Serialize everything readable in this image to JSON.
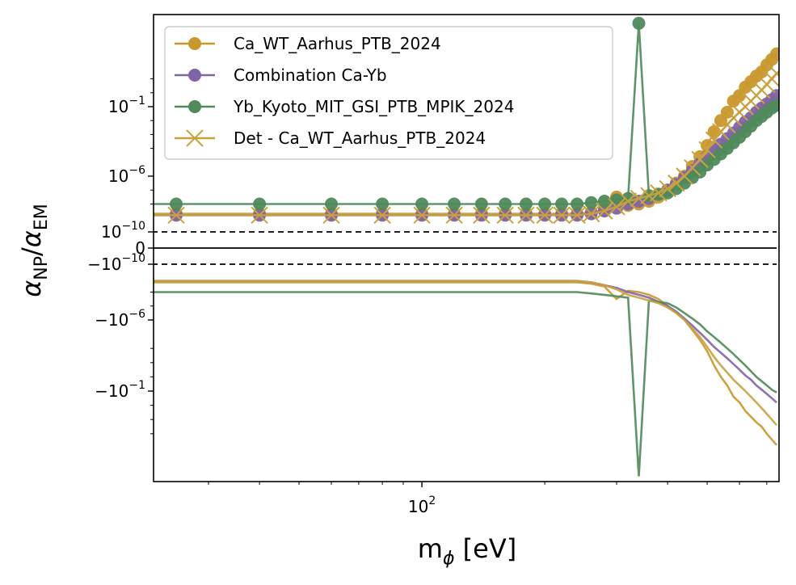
{
  "chart_data": {
    "type": "line",
    "xlabel_main": "m",
    "xlabel_sub": "ϕ",
    "xlabel_unit": " [eV]",
    "ylabel_num": "α",
    "ylabel_num_sub": "NP",
    "ylabel_den": "α",
    "ylabel_den_sub": "EM",
    "x_scale": "log",
    "y_scale": "symlog",
    "xlim": [
      22,
      750
    ],
    "x_ticks": [
      {
        "base": "10",
        "exp": "2",
        "value": 100
      }
    ],
    "y_ticks": [
      {
        "base": "10",
        "exp": "−1",
        "value": 0.1
      },
      {
        "base": "10",
        "exp": "−6",
        "value": 1e-06
      },
      {
        "base": "10",
        "exp": "−10",
        "value": 1e-10
      },
      {
        "base": "0",
        "exp": "",
        "value": 0
      },
      {
        "base": "−10",
        "exp": "−10",
        "value": -1e-10
      },
      {
        "base": "−10",
        "exp": "−6",
        "value": -1e-06
      },
      {
        "base": "−10",
        "exp": "−1",
        "value": -0.1
      }
    ],
    "dashed_lines": [
      1e-10,
      -1e-10
    ],
    "solid_lines": [
      0
    ],
    "legend_position": "upper-left",
    "x": [
      25,
      40,
      60,
      80,
      100,
      120,
      140,
      160,
      180,
      200,
      220,
      240,
      260,
      280,
      300,
      320,
      340,
      360,
      380,
      400,
      420,
      440,
      460,
      480,
      500,
      520,
      540,
      560,
      580,
      600,
      620,
      640,
      660,
      680,
      700,
      720,
      740
    ],
    "series": [
      {
        "name": "Ca_WT_Aarhus_PTB_2024",
        "color": "#c9982c",
        "marker": "circle",
        "pos_exp": [
          -8.7,
          -8.7,
          -8.7,
          -8.7,
          -8.7,
          -8.7,
          -8.7,
          -8.7,
          -8.7,
          -8.7,
          -8.7,
          -8.7,
          -8.6,
          -8.4,
          -7.5,
          -8.1,
          -8.0,
          -7.8,
          -7.5,
          -7.0,
          -6.5,
          -6.0,
          -5.3,
          -4.6,
          -3.8,
          -2.8,
          -2.0,
          -1.4,
          -0.6,
          -0.2,
          0.4,
          0.8,
          1.2,
          1.5,
          2.0,
          2.4,
          2.8
        ],
        "neg_exp": [
          -8.7,
          -8.7,
          -8.7,
          -8.7,
          -8.7,
          -8.7,
          -8.7,
          -8.7,
          -8.7,
          -8.7,
          -8.7,
          -8.7,
          -8.6,
          -8.4,
          -7.5,
          -8.1,
          -8.0,
          -7.8,
          -7.5,
          -7.0,
          -6.5,
          -6.0,
          -5.3,
          -4.6,
          -3.8,
          -2.8,
          -2.0,
          -1.4,
          -0.6,
          -0.2,
          0.4,
          0.8,
          1.2,
          1.5,
          2.0,
          2.4,
          2.8
        ]
      },
      {
        "name": "Combination Ca-Yb",
        "color": "#8064a8",
        "marker": "circle",
        "pos_exp": [
          -8.8,
          -8.8,
          -8.8,
          -8.8,
          -8.8,
          -8.8,
          -8.8,
          -8.8,
          -8.8,
          -8.8,
          -8.8,
          -8.8,
          -8.7,
          -8.5,
          -8.3,
          -8.0,
          -7.8,
          -7.6,
          -7.3,
          -7.0,
          -6.6,
          -6.1,
          -5.6,
          -5.1,
          -4.6,
          -4.1,
          -3.7,
          -3.3,
          -2.9,
          -2.5,
          -2.1,
          -1.8,
          -1.4,
          -1.1,
          -0.8,
          -0.5,
          -0.2
        ],
        "neg_exp": [
          -8.8,
          -8.8,
          -8.8,
          -8.8,
          -8.8,
          -8.8,
          -8.8,
          -8.8,
          -8.8,
          -8.8,
          -8.8,
          -8.8,
          -8.7,
          -8.5,
          -8.3,
          -8.0,
          -7.8,
          -7.6,
          -7.3,
          -7.0,
          -6.6,
          -6.1,
          -5.6,
          -5.1,
          -4.6,
          -4.1,
          -3.7,
          -3.3,
          -2.9,
          -2.5,
          -2.1,
          -1.8,
          -1.4,
          -1.1,
          -0.8,
          -0.5,
          -0.2
        ]
      },
      {
        "name": "Yb_Kyoto_MIT_GSI_PTB_MPIK_2024",
        "color": "#4e8a5a",
        "marker": "circle",
        "pos_exp": [
          -8.0,
          -8.0,
          -8.0,
          -8.0,
          -8.0,
          -8.0,
          -8.0,
          -8.0,
          -8.0,
          -8.0,
          -8.0,
          -8.0,
          -7.9,
          -7.8,
          -7.7,
          -7.6,
          5.0,
          -7.4,
          -7.3,
          -7.2,
          -6.9,
          -6.5,
          -6.1,
          -5.7,
          -5.2,
          -4.8,
          -4.4,
          -4.0,
          -3.6,
          -3.2,
          -2.8,
          -2.4,
          -2.0,
          -1.7,
          -1.4,
          -1.1,
          -0.9
        ],
        "neg_exp": [
          -8.0,
          -8.0,
          -8.0,
          -8.0,
          -8.0,
          -8.0,
          -8.0,
          -8.0,
          -8.0,
          -8.0,
          -8.0,
          -8.0,
          -7.9,
          -7.8,
          -7.7,
          -7.6,
          5.0,
          -7.4,
          -7.3,
          -7.2,
          -6.9,
          -6.5,
          -6.1,
          -5.7,
          -5.2,
          -4.8,
          -4.4,
          -4.0,
          -3.6,
          -3.2,
          -2.8,
          -2.4,
          -2.0,
          -1.7,
          -1.4,
          -1.1,
          -0.9
        ]
      },
      {
        "name": "Det - Ca_WT_Aarhus_PTB_2024",
        "color": "#c9a23e",
        "marker": "x",
        "pos_exp": [
          -8.8,
          -8.8,
          -8.8,
          -8.8,
          -8.8,
          -8.8,
          -8.8,
          -8.8,
          -8.8,
          -8.8,
          -8.8,
          -8.8,
          -8.7,
          -8.5,
          -8.2,
          -7.8,
          -7.6,
          -7.4,
          -7.2,
          -6.9,
          -6.5,
          -6.0,
          -5.4,
          -4.8,
          -4.1,
          -3.4,
          -2.8,
          -2.3,
          -1.8,
          -1.4,
          -1.0,
          -0.6,
          -0.2,
          0.2,
          0.6,
          1.0,
          1.4
        ],
        "neg_exp": [
          -8.8,
          -8.8,
          -8.8,
          -8.8,
          -8.8,
          -8.8,
          -8.8,
          -8.8,
          -8.8,
          -8.8,
          -8.8,
          -8.8,
          -8.7,
          -8.5,
          -8.2,
          -7.8,
          -7.6,
          -7.4,
          -7.2,
          -6.9,
          -6.5,
          -6.0,
          -5.4,
          -4.8,
          -4.1,
          -3.4,
          -2.8,
          -2.3,
          -1.8,
          -1.4,
          -1.0,
          -0.6,
          -0.2,
          0.2,
          0.6,
          1.0,
          1.4
        ]
      }
    ]
  }
}
